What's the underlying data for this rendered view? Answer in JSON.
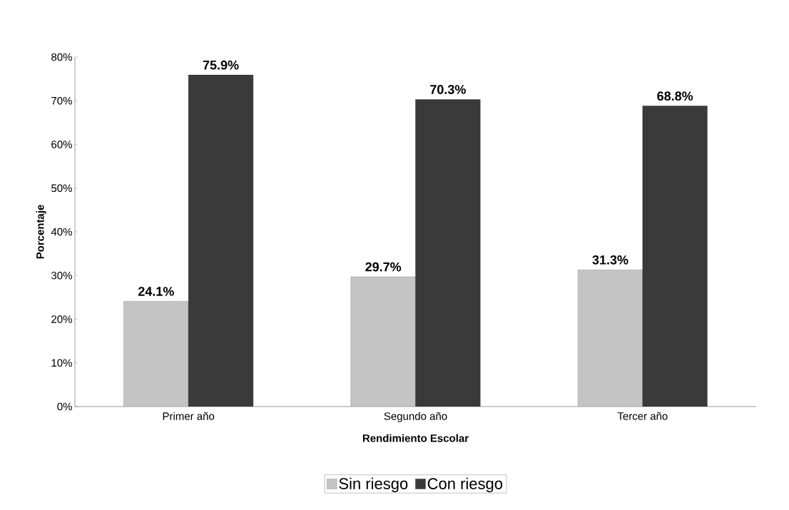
{
  "chart_data": {
    "type": "bar",
    "xlabel": "Rendimiento Escolar",
    "ylabel": "Porcentaje",
    "categories": [
      "Primer año",
      "Segundo año",
      "Tercer año"
    ],
    "series": [
      {
        "name": "Sin riesgo",
        "color": "#c4c4c4",
        "values": [
          24.1,
          29.7,
          31.3
        ],
        "value_labels": [
          "24.1%",
          "29.7%",
          "31.3%"
        ]
      },
      {
        "name": "Con riesgo",
        "color": "#3a3a3a",
        "values": [
          75.9,
          70.3,
          68.8
        ],
        "value_labels": [
          "75.9%",
          "70.3%",
          "68.8%"
        ]
      }
    ],
    "ylim": [
      0,
      80
    ],
    "yticks": [
      {
        "value": 0,
        "label": "0%"
      },
      {
        "value": 10,
        "label": "10%"
      },
      {
        "value": 20,
        "label": "20%"
      },
      {
        "value": 30,
        "label": "30%"
      },
      {
        "value": 40,
        "label": "40%"
      },
      {
        "value": 50,
        "label": "50%"
      },
      {
        "value": 60,
        "label": "60%"
      },
      {
        "value": 70,
        "label": "70%"
      },
      {
        "value": 80,
        "label": "80%"
      }
    ],
    "legend": "bottom"
  }
}
